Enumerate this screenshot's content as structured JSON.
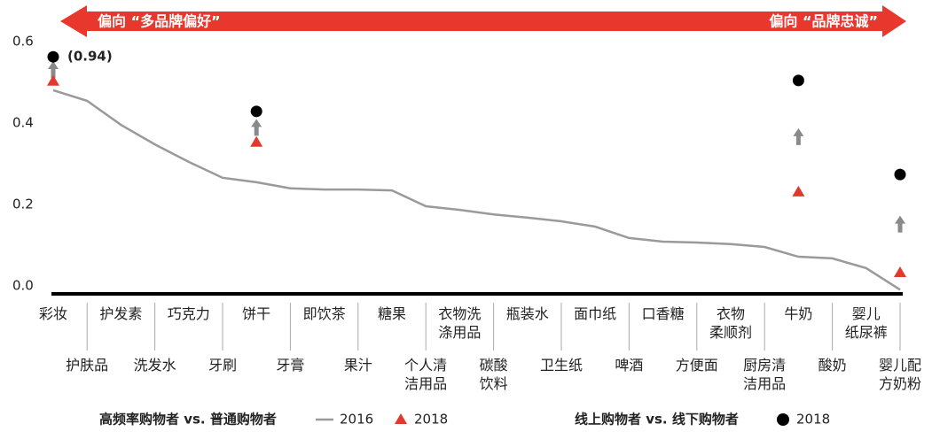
{
  "chart_data": {
    "type": "line",
    "banner_left": "偏向 “多品牌偏好”",
    "banner_right": "偏向 “品牌忠诚”",
    "annotation": "(0.94)",
    "categories": [
      "彩妆",
      "护肤品",
      "护发素",
      "洗发水",
      "巧克力",
      "牙刷",
      "饼干",
      "牙膏",
      "即饮茶",
      "果汁",
      "糖果",
      "个人清\n洁用品",
      "衣物洗\n涤用品",
      "碳酸\n饮料",
      "瓶装水",
      "卫生纸",
      "面巾纸",
      "啤酒",
      "口香糖",
      "方便面",
      "衣物\n柔顺剂",
      "厨房清\n洁用品",
      "牛奶",
      "酸奶",
      "婴儿\n纸尿裤",
      "婴儿配\n方奶粉"
    ],
    "series": [
      {
        "name": "2016",
        "group": "高频率购物者 vs. 普通购物者",
        "color": "#9a9a9a",
        "mark": "line",
        "values": [
          0.498,
          0.472,
          0.413,
          0.365,
          0.322,
          0.283,
          0.272,
          0.257,
          0.254,
          0.254,
          0.252,
          0.213,
          0.204,
          0.193,
          0.185,
          0.176,
          0.163,
          0.135,
          0.126,
          0.124,
          0.12,
          0.113,
          0.089,
          0.085,
          0.061,
          0.008
        ]
      },
      {
        "name": "2018",
        "group": "高频率购物者 vs. 普通购物者",
        "color": "#e2392d",
        "mark": "triangle",
        "values": [
          0.52,
          null,
          null,
          null,
          null,
          null,
          0.37,
          null,
          null,
          null,
          null,
          null,
          null,
          null,
          null,
          null,
          null,
          null,
          null,
          null,
          null,
          null,
          0.248,
          null,
          null,
          0.05
        ]
      },
      {
        "name": "2018",
        "group": "线上购物者 vs. 线下购物者",
        "color": "#000000",
        "mark": "dot",
        "values": [
          0.58,
          null,
          null,
          null,
          null,
          null,
          0.446,
          null,
          null,
          null,
          null,
          null,
          null,
          null,
          null,
          null,
          null,
          null,
          null,
          null,
          null,
          null,
          0.522,
          null,
          null,
          0.291
        ]
      }
    ],
    "ylim": [
      0,
      0.6
    ],
    "yticks": [
      {
        "value": 0,
        "label": "0.0"
      },
      0.2,
      0.4,
      0.6
    ]
  }
}
